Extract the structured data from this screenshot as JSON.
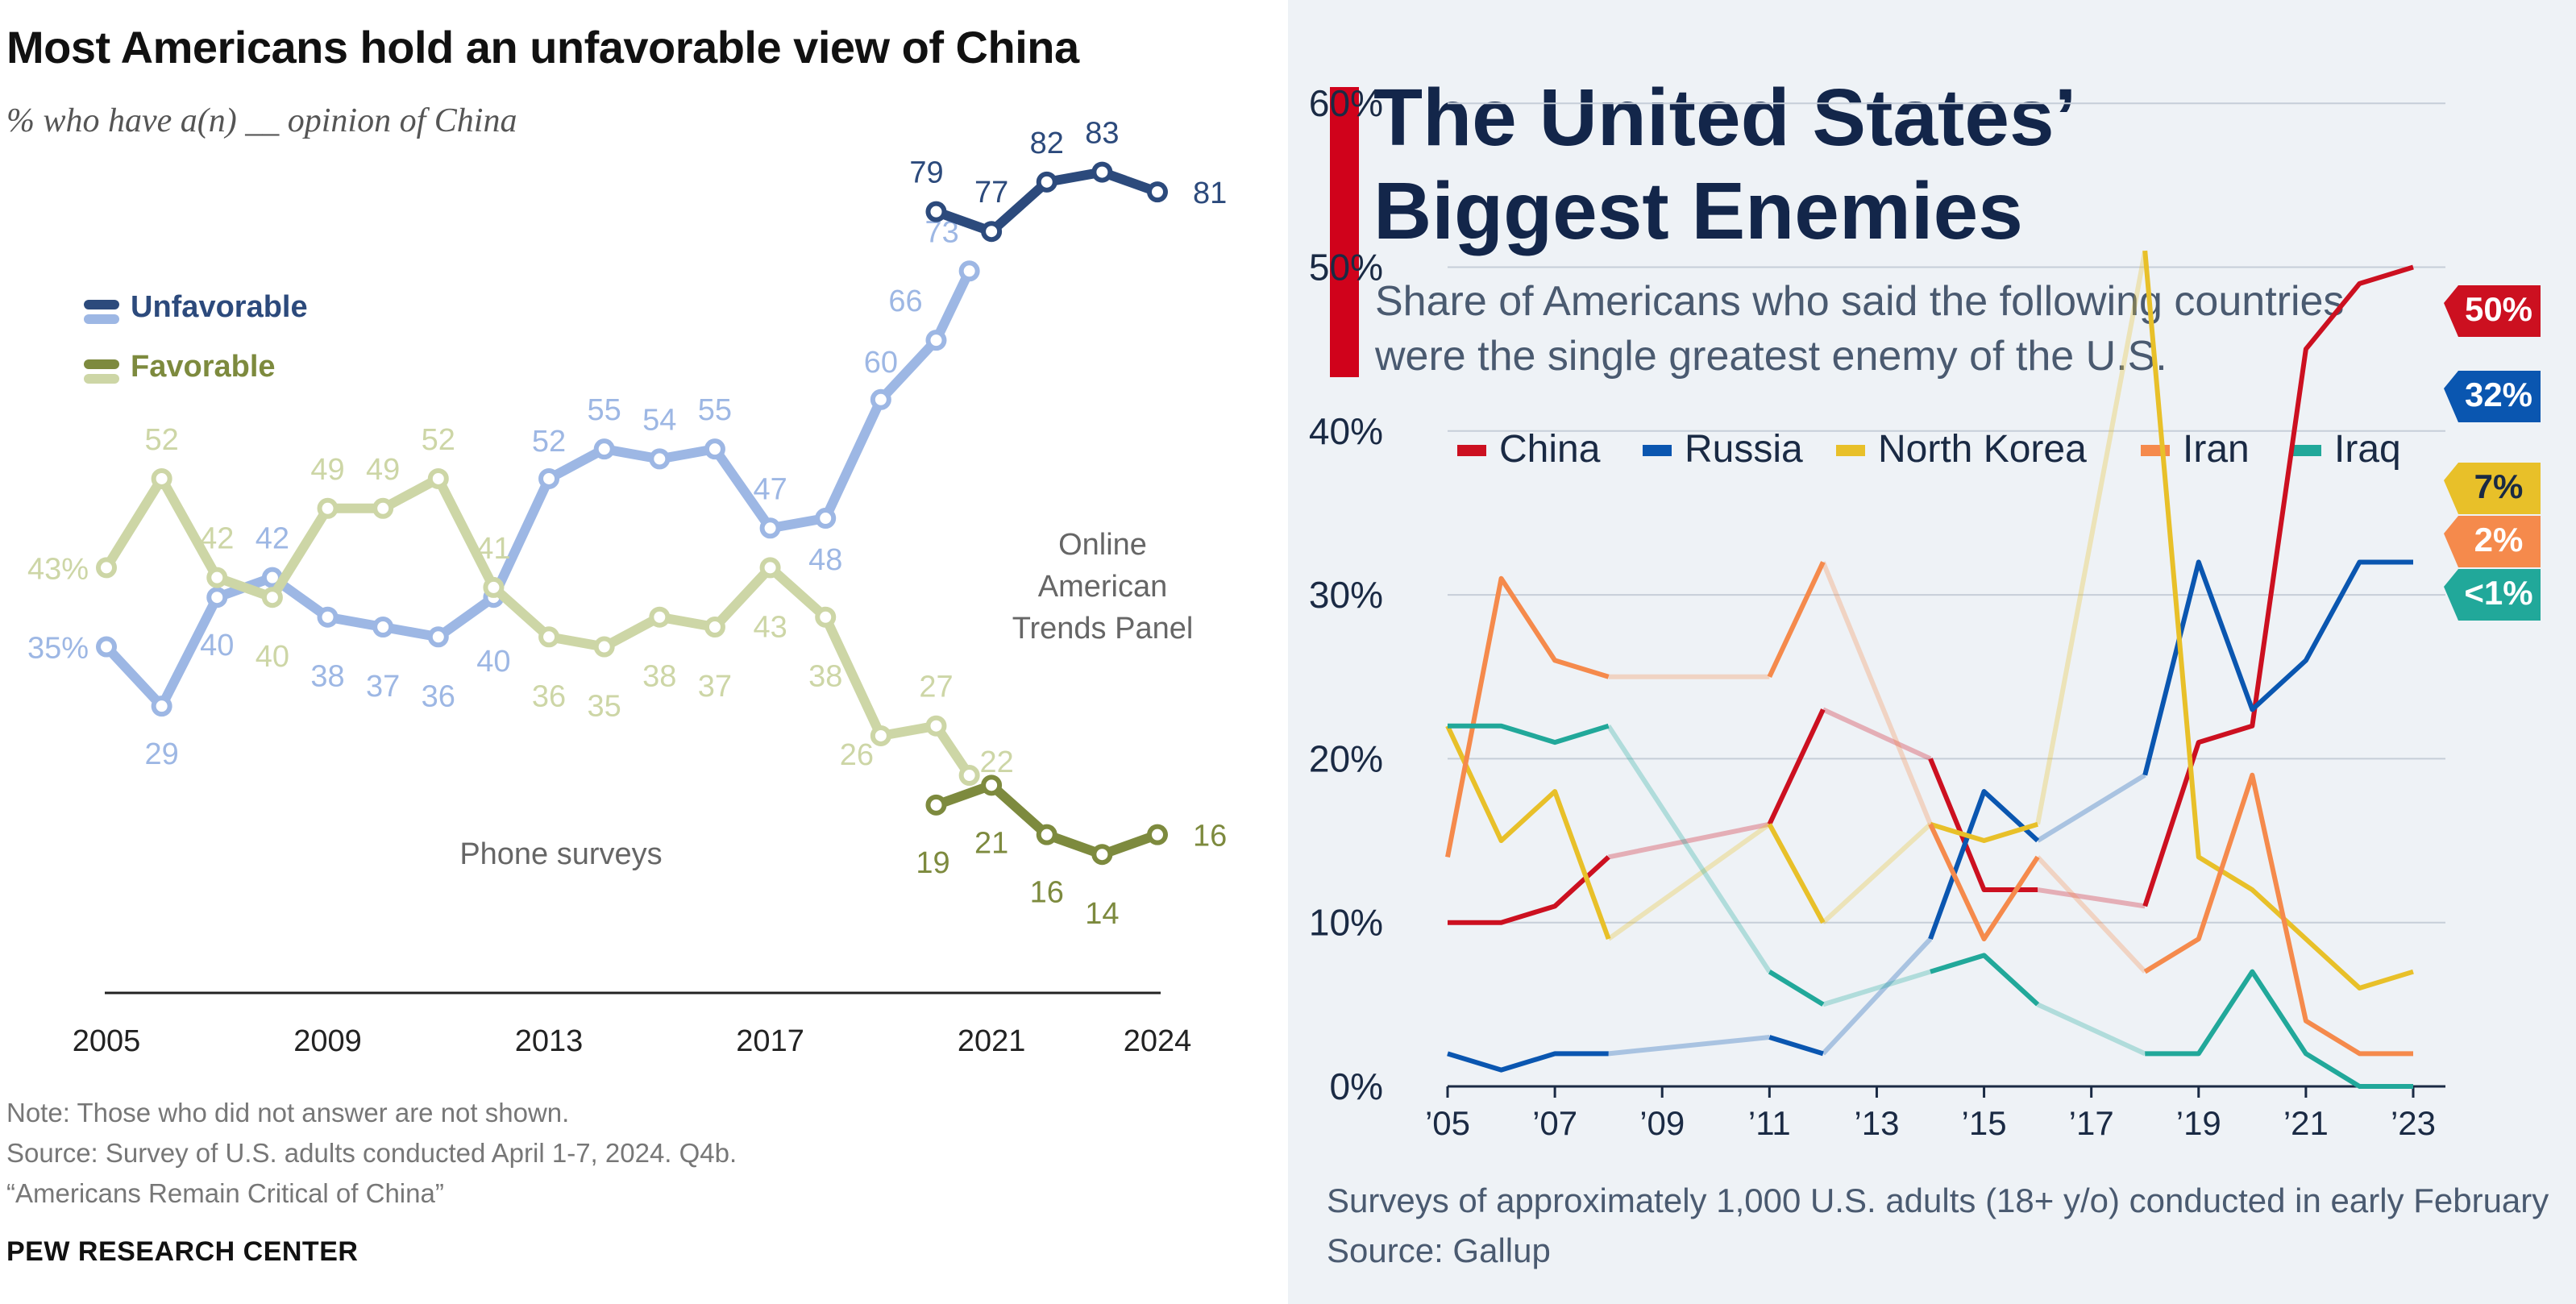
{
  "left_panel": {
    "title": "Most Americans hold an unfavorable view of China",
    "subtitle": "% who have a(n) __ opinion of China",
    "legend": {
      "unfavorable": "Unfavorable",
      "favorable": "Favorable"
    },
    "annotations": {
      "phone": "Phone surveys",
      "online_1": "Online",
      "online_2": "American",
      "online_3": "Trends Panel"
    },
    "note": "Note: Those who did not answer are not shown.",
    "source": "Source: Survey of U.S. adults conducted April 1-7, 2024. Q4b.",
    "report": "“Americans Remain Critical of China”",
    "brand": "PEW RESEARCH CENTER"
  },
  "right_panel": {
    "title_line1": "The United States’",
    "title_line2": "Biggest Enemies",
    "subtitle_line1": "Share of Americans who said the following countries",
    "subtitle_line2": "were the single greatest enemy of the U.S.",
    "footnote": "Surveys of approximately 1,000 U.S. adults (18+ y/o) conducted in early February",
    "source": "Source: Gallup"
  },
  "chart_data": [
    {
      "type": "line",
      "title": "Most Americans hold an unfavorable view of China",
      "x_ticks": [
        "2005",
        "2009",
        "2013",
        "2017",
        "2021",
        "2024"
      ],
      "xlim": [
        2005,
        2024
      ],
      "ylim": [
        0,
        90
      ],
      "series": [
        {
          "name": "Unfavorable",
          "mode": "Phone surveys",
          "color": "#9db7e4",
          "x": [
            2005,
            2006,
            2007,
            2008,
            2009,
            2010,
            2011,
            2012,
            2013,
            2014,
            2015,
            2016,
            2017,
            2018,
            2019,
            2020,
            2020.6
          ],
          "values": [
            35,
            29,
            40,
            42,
            38,
            37,
            36,
            40,
            52,
            55,
            54,
            55,
            47,
            48,
            60,
            66,
            73
          ],
          "labels": [
            "35%",
            "29",
            "40",
            "42",
            "38",
            "37",
            "36",
            "40",
            "52",
            "55",
            "54",
            "55",
            "47",
            "48",
            "60",
            "66",
            "73"
          ]
        },
        {
          "name": "Favorable",
          "mode": "Phone surveys",
          "color": "#cdd6a6",
          "x": [
            2005,
            2006,
            2007,
            2008,
            2009,
            2010,
            2011,
            2012,
            2013,
            2014,
            2015,
            2016,
            2017,
            2018,
            2019,
            2020,
            2020.6
          ],
          "values": [
            43,
            52,
            42,
            40,
            49,
            49,
            52,
            41,
            36,
            35,
            38,
            37,
            43,
            38,
            26,
            27,
            22
          ],
          "labels": [
            "43%",
            "52",
            "42",
            "40",
            "49",
            "49",
            "52",
            "41",
            "36",
            "35",
            "38",
            "37",
            "43",
            "38",
            "26",
            "27",
            "22"
          ]
        },
        {
          "name": "Unfavorable",
          "mode": "Online American Trends Panel",
          "color": "#2c4a7c",
          "x": [
            2020,
            2021,
            2022,
            2023,
            2024
          ],
          "values": [
            79,
            77,
            82,
            83,
            81
          ],
          "labels": [
            "79",
            "77",
            "82",
            "83",
            "81"
          ]
        },
        {
          "name": "Favorable",
          "mode": "Online American Trends Panel",
          "color": "#7d8a3e",
          "x": [
            2020,
            2021,
            2022,
            2023,
            2024
          ],
          "values": [
            19,
            21,
            16,
            14,
            16
          ],
          "labels": [
            "19",
            "21",
            "16",
            "14",
            "16"
          ]
        }
      ]
    },
    {
      "type": "line",
      "title": "The United States’ Biggest Enemies",
      "x_ticks": [
        "’05",
        "’07",
        "’09",
        "’11",
        "’13",
        "’15",
        "’17",
        "’19",
        "’21",
        "’23"
      ],
      "xlim": [
        2005,
        2023
      ],
      "ylim": [
        0,
        60
      ],
      "y_ticks": [
        "0%",
        "10%",
        "20%",
        "30%",
        "40%",
        "50%",
        "60%"
      ],
      "legend": [
        "China",
        "Russia",
        "North Korea",
        "Iran",
        "Iraq"
      ],
      "series": [
        {
          "name": "China",
          "color": "#cc1020",
          "x": [
            2005,
            2006,
            2007,
            2008,
            2011,
            2012,
            2014,
            2015,
            2016,
            2018,
            2019,
            2020,
            2021,
            2022,
            2023
          ],
          "values": [
            10,
            10,
            11,
            14,
            16,
            23,
            20,
            12,
            12,
            11,
            21,
            22,
            45,
            49,
            50
          ],
          "end_label": "50%"
        },
        {
          "name": "Russia",
          "color": "#0a56b0",
          "x": [
            2005,
            2006,
            2007,
            2008,
            2011,
            2012,
            2014,
            2015,
            2016,
            2018,
            2019,
            2020,
            2021,
            2022,
            2023
          ],
          "values": [
            2,
            1,
            2,
            2,
            3,
            2,
            9,
            18,
            15,
            19,
            32,
            23,
            26,
            32,
            32
          ],
          "end_label": "32%"
        },
        {
          "name": "North Korea",
          "color": "#e8c029",
          "x": [
            2005,
            2006,
            2007,
            2008,
            2011,
            2012,
            2014,
            2015,
            2016,
            2018,
            2019,
            2020,
            2021,
            2022,
            2023
          ],
          "values": [
            22,
            15,
            18,
            9,
            16,
            10,
            16,
            15,
            16,
            51,
            14,
            12,
            9,
            6,
            7
          ],
          "end_label": "7%"
        },
        {
          "name": "Iran",
          "color": "#f58a4c",
          "x": [
            2005,
            2006,
            2007,
            2008,
            2011,
            2012,
            2014,
            2015,
            2016,
            2018,
            2019,
            2020,
            2021,
            2022,
            2023
          ],
          "values": [
            14,
            31,
            26,
            25,
            25,
            32,
            16,
            9,
            14,
            7,
            9,
            19,
            4,
            2,
            2
          ],
          "end_label": "2%"
        },
        {
          "name": "Iraq",
          "color": "#21a89a",
          "x": [
            2005,
            2006,
            2007,
            2008,
            2011,
            2012,
            2014,
            2015,
            2016,
            2018,
            2019,
            2020,
            2021,
            2022,
            2023
          ],
          "values": [
            22,
            22,
            21,
            22,
            7,
            5,
            7,
            8,
            5,
            2,
            2,
            7,
            2,
            0,
            0
          ],
          "end_label": "<1%"
        }
      ]
    }
  ]
}
